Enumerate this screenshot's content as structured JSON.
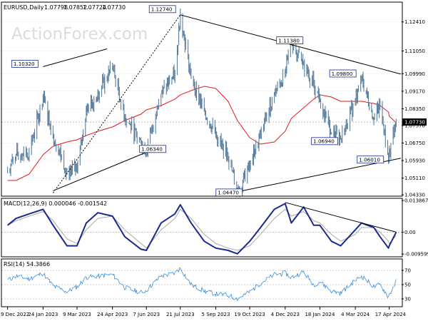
{
  "chart_data": [
    {
      "type": "bar",
      "subtype": "ohlc",
      "title": "EURUSD,Daily",
      "ohlc": [
        "1.07798",
        "1.07852",
        "1.07724",
        "1.07730"
      ],
      "watermark": "ActionForex.com",
      "ylim": [
        1.043,
        1.133
      ],
      "y_ticks": [
        "1.12410",
        "1.11050",
        "1.09990",
        "1.09170",
        "1.08350",
        "1.07570",
        "1.06750",
        "1.05930",
        "1.05110",
        "1.04330"
      ],
      "current_price": "1.07730",
      "x_ticks": [
        "9 Dec 2022",
        "24 Jan 2023",
        "9 Mar 2023",
        "24 Apr 2023",
        "7 Jun 2023",
        "21 Jul 2023",
        "5 Sep 2023",
        "19 Oct 2023",
        "4 Dec 2023",
        "18 Jan 2024",
        "4 Mar 2024",
        "17 Apr 2024"
      ],
      "x": [
        "2022-12-09",
        "2022-12-20",
        "2023-01-06",
        "2023-01-24",
        "2023-02-06",
        "2023-02-24",
        "2023-03-09",
        "2023-03-21",
        "2023-04-05",
        "2023-04-24",
        "2023-05-10",
        "2023-05-31",
        "2023-06-07",
        "2023-06-26",
        "2023-07-14",
        "2023-07-21",
        "2023-08-04",
        "2023-08-21",
        "2023-09-05",
        "2023-09-21",
        "2023-10-03",
        "2023-10-19",
        "2023-11-02",
        "2023-11-20",
        "2023-12-04",
        "2023-12-12",
        "2023-12-28",
        "2024-01-10",
        "2024-01-18",
        "2024-02-02",
        "2024-02-14",
        "2024-03-04",
        "2024-03-12",
        "2024-03-28",
        "2024-04-05",
        "2024-04-16",
        "2024-04-17",
        "2024-04-26"
      ],
      "series": [
        {
          "values": [
            1.055,
            1.062,
            1.0632,
            1.089,
            1.071,
            1.054,
            1.0558,
            1.083,
            1.0905,
            1.1032,
            1.0795,
            1.068,
            1.0634,
            1.0905,
            1.0995,
            1.1274,
            1.098,
            1.0825,
            1.0715,
            1.061,
            1.0447,
            1.057,
            1.071,
            1.0905,
            1.1,
            1.1138,
            1.104,
            1.0955,
            1.0878,
            1.0725,
            1.0694,
            1.087,
            1.098,
            1.079,
            1.085,
            1.0601,
            1.0635,
            1.0773
          ]
        },
        {
          "values": [
            1.05,
            1.05,
            1.053,
            1.062,
            1.066,
            1.068,
            1.069,
            1.071,
            1.073,
            1.075,
            1.078,
            1.081,
            1.083,
            1.085,
            1.088,
            1.09,
            1.092,
            1.094,
            1.093,
            1.087,
            1.078,
            1.07,
            1.067,
            1.068,
            1.073,
            1.079,
            1.084,
            1.088,
            1.09,
            1.089,
            1.087,
            1.087,
            1.087,
            1.086,
            1.085,
            1.082,
            1.08,
            1.077
          ]
        }
      ],
      "labels": [
        {
          "text": "1.10320",
          "x": "2023-01-24",
          "y": 1.1032
        },
        {
          "text": "1.06340",
          "x": "2023-05-31",
          "y": 1.0634
        },
        {
          "text": "1.12740",
          "x": "2023-07-14",
          "y": 1.1274
        },
        {
          "text": "1.04470",
          "x": "2023-10-03",
          "y": 1.0447
        },
        {
          "text": "1.11380",
          "x": "2023-12-28",
          "y": 1.1138
        },
        {
          "text": "1.06940",
          "x": "2024-02-02",
          "y": 1.0694
        },
        {
          "text": "1.09800",
          "x": "2024-03-04",
          "y": 1.098
        },
        {
          "text": "1.06010",
          "x": "2024-04-05",
          "y": 1.0601
        }
      ],
      "trendlines": [
        {
          "x": [
            "2023-01-24",
            "2023-04-17"
          ],
          "y": [
            1.1032,
            1.1115
          ]
        },
        {
          "x": [
            "2023-02-06",
            "2023-06-26"
          ],
          "y": [
            1.0452,
            1.066
          ]
        },
        {
          "x": [
            "2023-02-06",
            "2023-07-21"
          ],
          "y": [
            1.0442,
            1.1274
          ],
          "dash": true
        },
        {
          "x": [
            "2023-07-21",
            "2024-05-02"
          ],
          "y": [
            1.1274,
            1.0997
          ]
        },
        {
          "x": [
            "2023-10-03",
            "2024-05-02"
          ],
          "y": [
            1.0447,
            1.0604
          ]
        }
      ],
      "colors": {
        "price": "#5b7fa0",
        "ma": "#e31a1c",
        "lines": "#000000",
        "grid": "#bdbdbd"
      }
    },
    {
      "type": "line",
      "title": "MACD(12,26,9) 0.000046 -0.001542",
      "ylim": [
        -0.0105,
        0.0145
      ],
      "y_ticks": [
        "0.013867",
        "0.00",
        "-0.009599"
      ],
      "x": [
        "2022-12-09",
        "2022-12-20",
        "2023-01-06",
        "2023-01-24",
        "2023-02-06",
        "2023-02-24",
        "2023-03-09",
        "2023-03-21",
        "2023-04-05",
        "2023-04-24",
        "2023-05-10",
        "2023-05-31",
        "2023-06-07",
        "2023-06-26",
        "2023-07-14",
        "2023-07-21",
        "2023-08-04",
        "2023-08-21",
        "2023-09-05",
        "2023-09-21",
        "2023-10-03",
        "2023-10-19",
        "2023-11-02",
        "2023-11-20",
        "2023-12-04",
        "2023-12-12",
        "2023-12-28",
        "2024-01-10",
        "2024-01-18",
        "2024-02-02",
        "2024-02-14",
        "2024-03-04",
        "2024-03-12",
        "2024-03-28",
        "2024-04-05",
        "2024-04-16",
        "2024-04-17",
        "2024-04-26"
      ],
      "series": [
        {
          "values": [
            0.003,
            0.006,
            0.008,
            0.01,
            0.003,
            -0.006,
            -0.006,
            0.004,
            0.0085,
            0.007,
            -0.002,
            -0.0075,
            -0.008,
            0.004,
            0.008,
            0.012,
            0.004,
            -0.004,
            -0.007,
            -0.008,
            -0.0095,
            -0.004,
            0.002,
            0.01,
            0.0125,
            0.004,
            0.011,
            0.003,
            0.003,
            -0.004,
            -0.006,
            0.001,
            0.004,
            0.002,
            -0.002,
            -0.007,
            -0.006,
            0.0
          ]
        },
        {
          "values": [
            0.003,
            0.005,
            0.007,
            0.009,
            0.005,
            -0.003,
            -0.005,
            0.001,
            0.006,
            0.007,
            0.001,
            -0.005,
            -0.007,
            0.001,
            0.006,
            0.01,
            0.006,
            -0.001,
            -0.005,
            -0.007,
            -0.008,
            -0.006,
            -0.001,
            0.006,
            0.01,
            0.007,
            0.009,
            0.005,
            0.004,
            -0.001,
            -0.004,
            -0.001,
            0.002,
            0.002,
            0.0,
            -0.004,
            -0.005,
            -0.0015
          ]
        }
      ],
      "trendlines": [
        {
          "x": [
            "2023-12-04",
            "2024-04-26"
          ],
          "y": [
            0.013,
            0.0
          ]
        }
      ],
      "colors": {
        "macd": "#1a2a8a",
        "signal": "#a9a9a9",
        "zero": "#9a9a9a"
      }
    },
    {
      "type": "line",
      "title": "RSI(14) 54.3866",
      "ylim": [
        20,
        85
      ],
      "y_ticks": [
        "70",
        "50",
        "30"
      ],
      "x": [
        "2022-12-09",
        "2022-12-20",
        "2023-01-06",
        "2023-01-24",
        "2023-02-06",
        "2023-02-24",
        "2023-03-09",
        "2023-03-21",
        "2023-04-05",
        "2023-04-24",
        "2023-05-10",
        "2023-05-31",
        "2023-06-07",
        "2023-06-26",
        "2023-07-14",
        "2023-07-21",
        "2023-08-04",
        "2023-08-21",
        "2023-09-05",
        "2023-09-21",
        "2023-10-03",
        "2023-10-19",
        "2023-11-02",
        "2023-11-20",
        "2023-12-04",
        "2023-12-12",
        "2023-12-28",
        "2024-01-10",
        "2024-01-18",
        "2024-02-02",
        "2024-02-14",
        "2024-03-04",
        "2024-03-12",
        "2024-03-28",
        "2024-04-05",
        "2024-04-16",
        "2024-04-17",
        "2024-04-26"
      ],
      "series": [
        {
          "values": [
            56,
            62,
            58,
            66,
            48,
            40,
            47,
            60,
            62,
            64,
            46,
            39,
            42,
            62,
            66,
            73,
            50,
            41,
            37,
            35,
            30,
            40,
            52,
            64,
            66,
            60,
            68,
            50,
            54,
            41,
            38,
            56,
            62,
            47,
            50,
            33,
            36,
            54.4
          ]
        }
      ],
      "colors": {
        "rsi": "#3d8fd6",
        "guides": "#9a9a9a"
      }
    }
  ]
}
